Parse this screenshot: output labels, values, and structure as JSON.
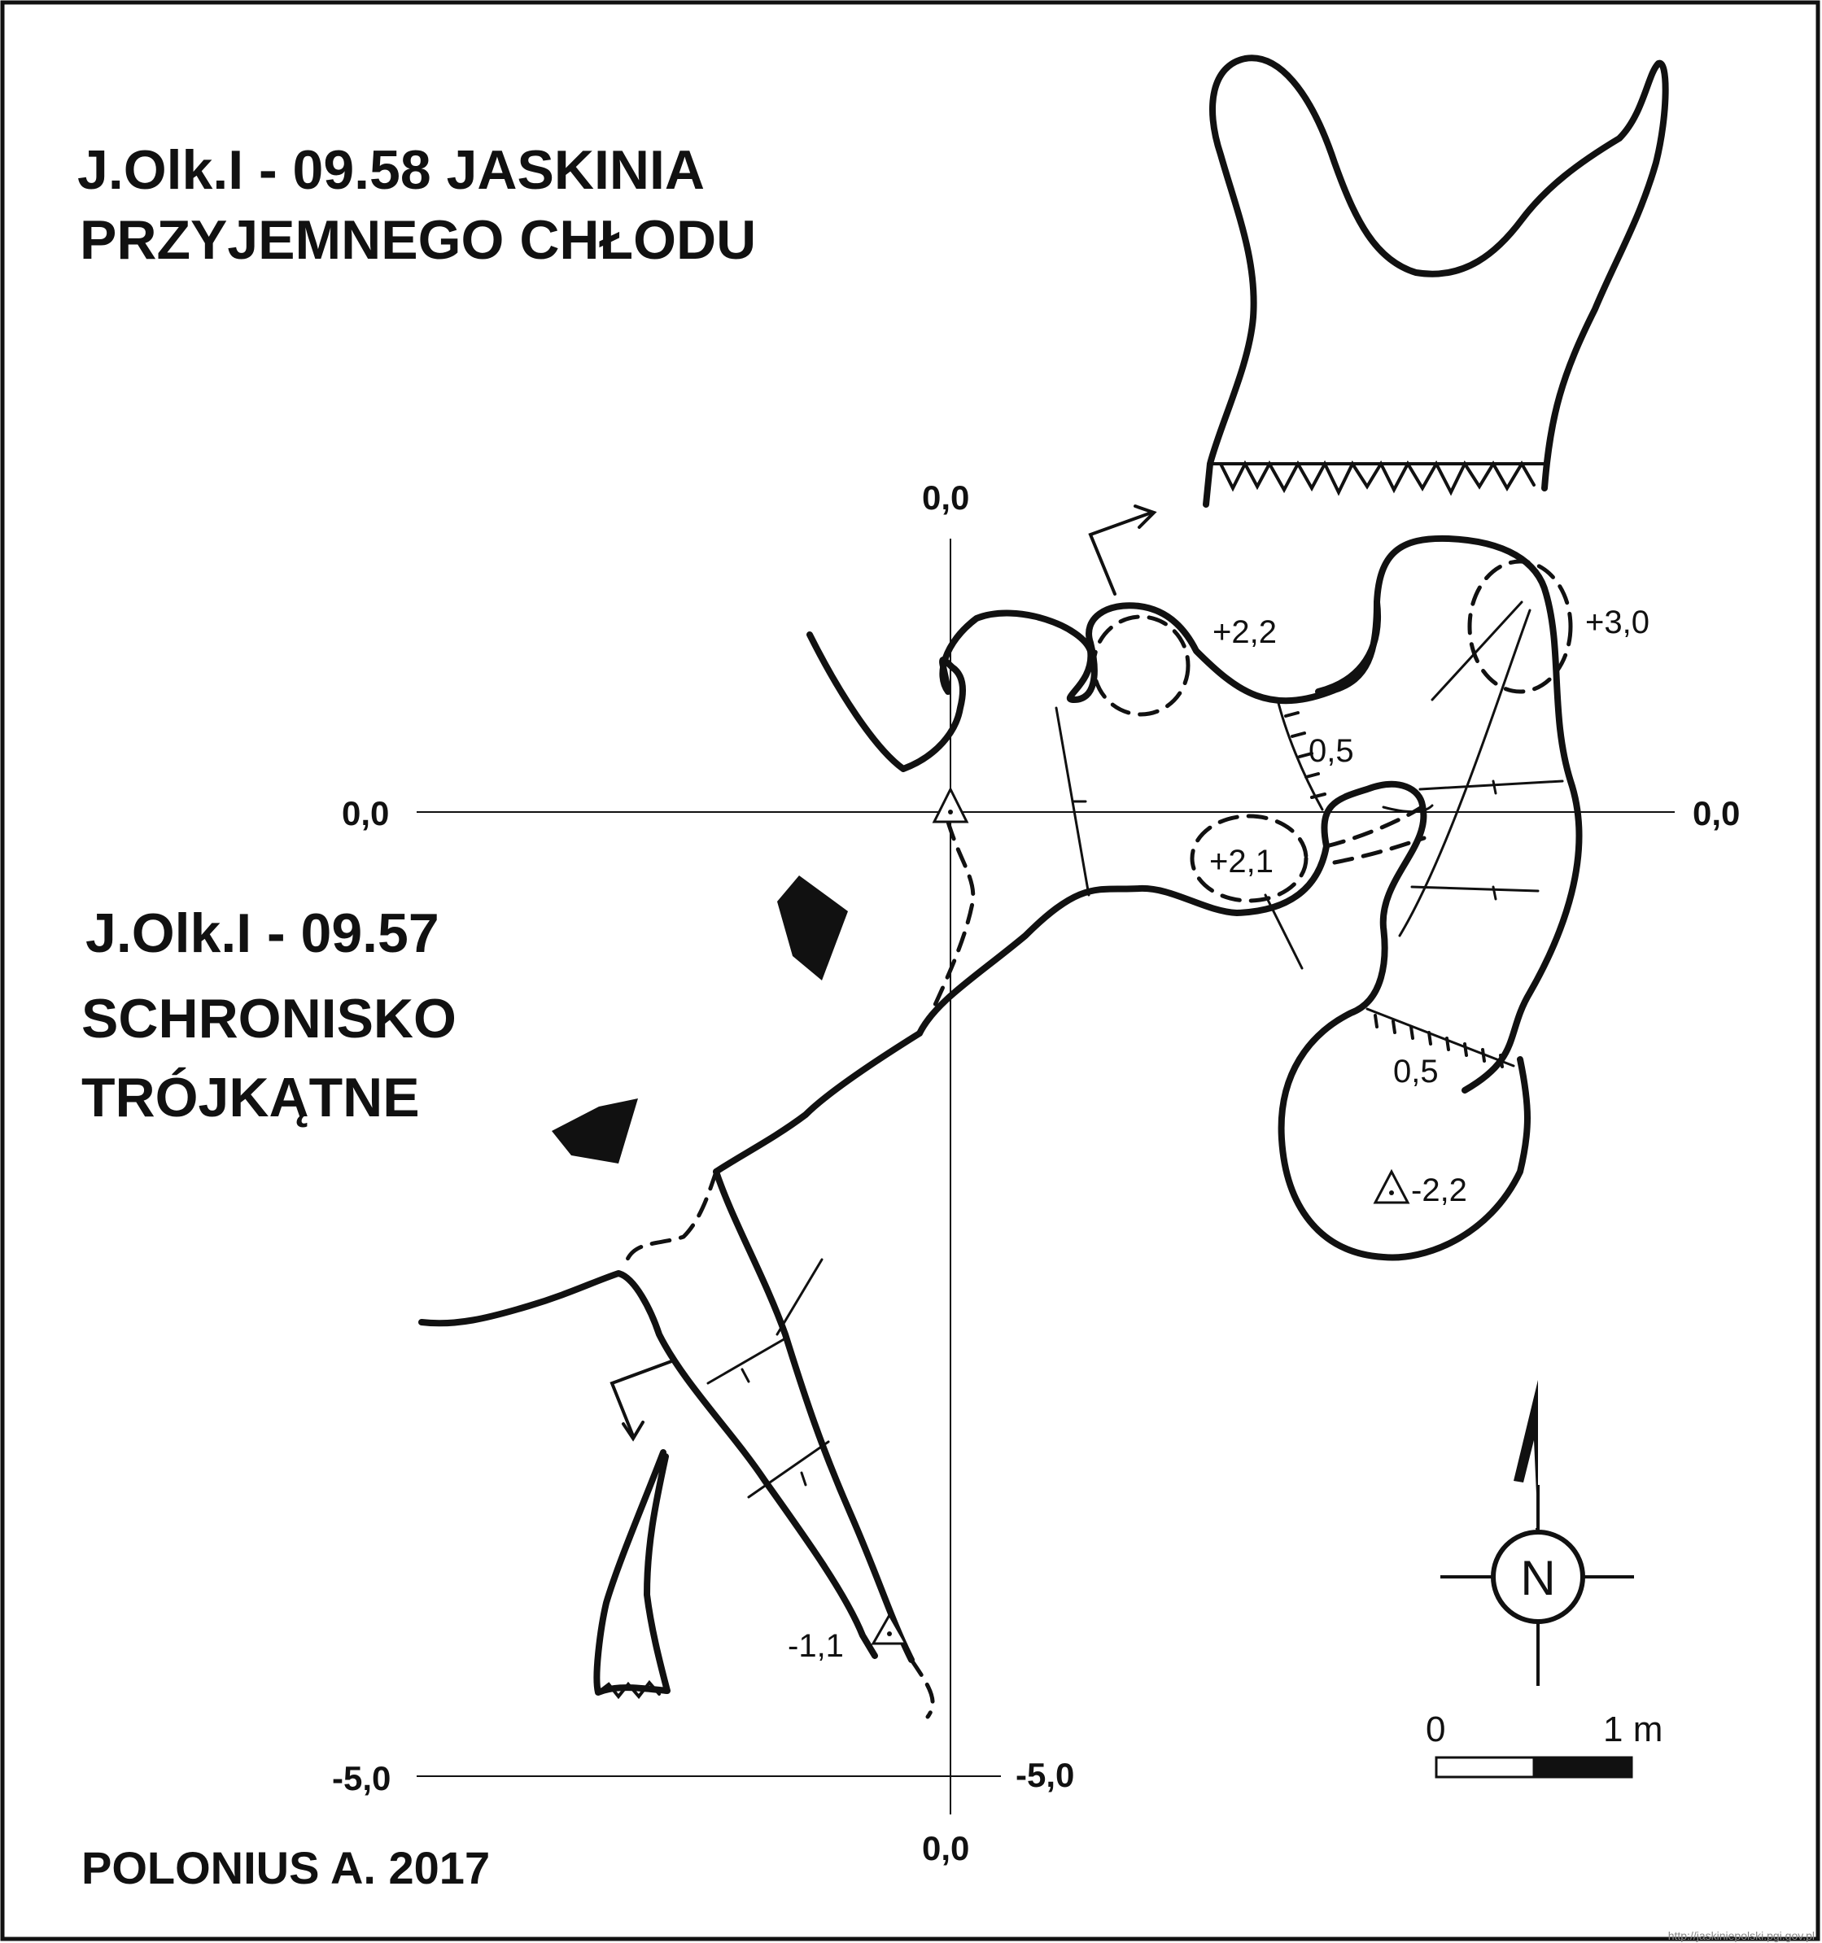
{
  "titles": {
    "cave_58_line1": "J.Olk.I - 09.58  JASKINIA",
    "cave_58_line2": "PRZYJEMNEGO CHŁODU",
    "cave_57_line1": "J.Olk.I - 09.57",
    "cave_57_line2": "SCHRONISKO",
    "cave_57_line3": "TRÓJKĄTNE"
  },
  "author": "POLONIUS A.  2017",
  "grid_labels": {
    "top": "0,0",
    "left": "0,0",
    "right": "0,0",
    "bottom_left": "-5,0",
    "bottom_right": "-5,0",
    "bottom": "0,0"
  },
  "height_marks": {
    "h1": "+2,2",
    "h2": "+3,0",
    "h3": "+2,1",
    "h4": "0,5",
    "h5": "0,5",
    "h6": "-2,2",
    "h7": "-1,1"
  },
  "north": "N",
  "scale": {
    "zero": "0",
    "one": "1 m"
  },
  "watermark": "http://jaskiniepolski.pgi.gov.pl",
  "colors": {
    "ink": "#111111",
    "paper": "#ffffff"
  }
}
